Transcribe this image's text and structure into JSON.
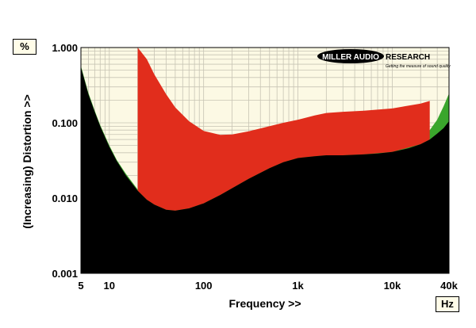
{
  "units": {
    "y": "%",
    "x": "Hz"
  },
  "brand": {
    "name": "MILLER AUDIO RESEARCH",
    "tagline": "Getting the measure of sound quality"
  },
  "colors": {
    "background": "#fcf9e4",
    "black_fill": "#000000",
    "red_fill": "#e12d1c",
    "green_fill": "#3aa62c",
    "grid": "#c7c4b4"
  },
  "chart_data": {
    "type": "area",
    "xlabel": "Frequency >>",
    "ylabel": "(Increasing) Distortion >>",
    "x_scale": "log",
    "y_scale": "log",
    "xlim": [
      5,
      40000
    ],
    "ylim": [
      0.001,
      1.0
    ],
    "x_ticks": [
      {
        "value": 5,
        "label": "5"
      },
      {
        "value": 10,
        "label": "10"
      },
      {
        "value": 100,
        "label": "100"
      },
      {
        "value": 1000,
        "label": "1k"
      },
      {
        "value": 10000,
        "label": "10k"
      },
      {
        "value": 40000,
        "label": "40k"
      }
    ],
    "y_ticks": [
      {
        "value": 0.001,
        "label": "0.001"
      },
      {
        "value": 0.01,
        "label": "0.010"
      },
      {
        "value": 0.1,
        "label": "0.100"
      },
      {
        "value": 1.0,
        "label": "1.000"
      }
    ],
    "grid": true,
    "series": [
      {
        "color": "black",
        "x": [
          5,
          6,
          7,
          8,
          10,
          12,
          15,
          20,
          25,
          30,
          40,
          50,
          70,
          100,
          150,
          200,
          300,
          500,
          700,
          1000,
          1500,
          2000,
          3000,
          5000,
          7000,
          10000,
          15000,
          20000,
          25000,
          30000,
          35000,
          40000
        ],
        "y": [
          0.55,
          0.24,
          0.14,
          0.09,
          0.048,
          0.031,
          0.02,
          0.0125,
          0.0095,
          0.0082,
          0.007,
          0.0068,
          0.0073,
          0.0085,
          0.011,
          0.0135,
          0.018,
          0.025,
          0.03,
          0.034,
          0.036,
          0.037,
          0.037,
          0.038,
          0.039,
          0.041,
          0.046,
          0.052,
          0.06,
          0.072,
          0.085,
          0.105
        ]
      },
      {
        "color": "red",
        "x": [
          20,
          25,
          30,
          40,
          50,
          70,
          100,
          150,
          200,
          300,
          500,
          700,
          1000,
          1500,
          2000,
          3000,
          5000,
          10000,
          20000,
          25000
        ],
        "y": [
          1.0,
          0.7,
          0.44,
          0.24,
          0.16,
          0.105,
          0.078,
          0.069,
          0.07,
          0.077,
          0.09,
          0.1,
          0.11,
          0.125,
          0.135,
          0.14,
          0.145,
          0.155,
          0.18,
          0.195
        ]
      },
      {
        "color": "green",
        "x": [
          5,
          6,
          7,
          8,
          10,
          12,
          15,
          20,
          25,
          30,
          40,
          50,
          70,
          100,
          150,
          200,
          300,
          500,
          700,
          1000,
          1500,
          2000,
          3000,
          5000,
          7000,
          10000,
          12000,
          15000,
          20000,
          25000,
          30000,
          35000,
          40000
        ],
        "y": [
          0.57,
          0.25,
          0.145,
          0.093,
          0.05,
          0.032,
          0.021,
          0.013,
          0.0099,
          0.0086,
          0.0074,
          0.0071,
          0.0077,
          0.009,
          0.0116,
          0.0142,
          0.019,
          0.026,
          0.031,
          0.035,
          0.037,
          0.038,
          0.038,
          0.039,
          0.041,
          0.044,
          0.047,
          0.053,
          0.065,
          0.08,
          0.11,
          0.165,
          0.245
        ]
      }
    ]
  }
}
